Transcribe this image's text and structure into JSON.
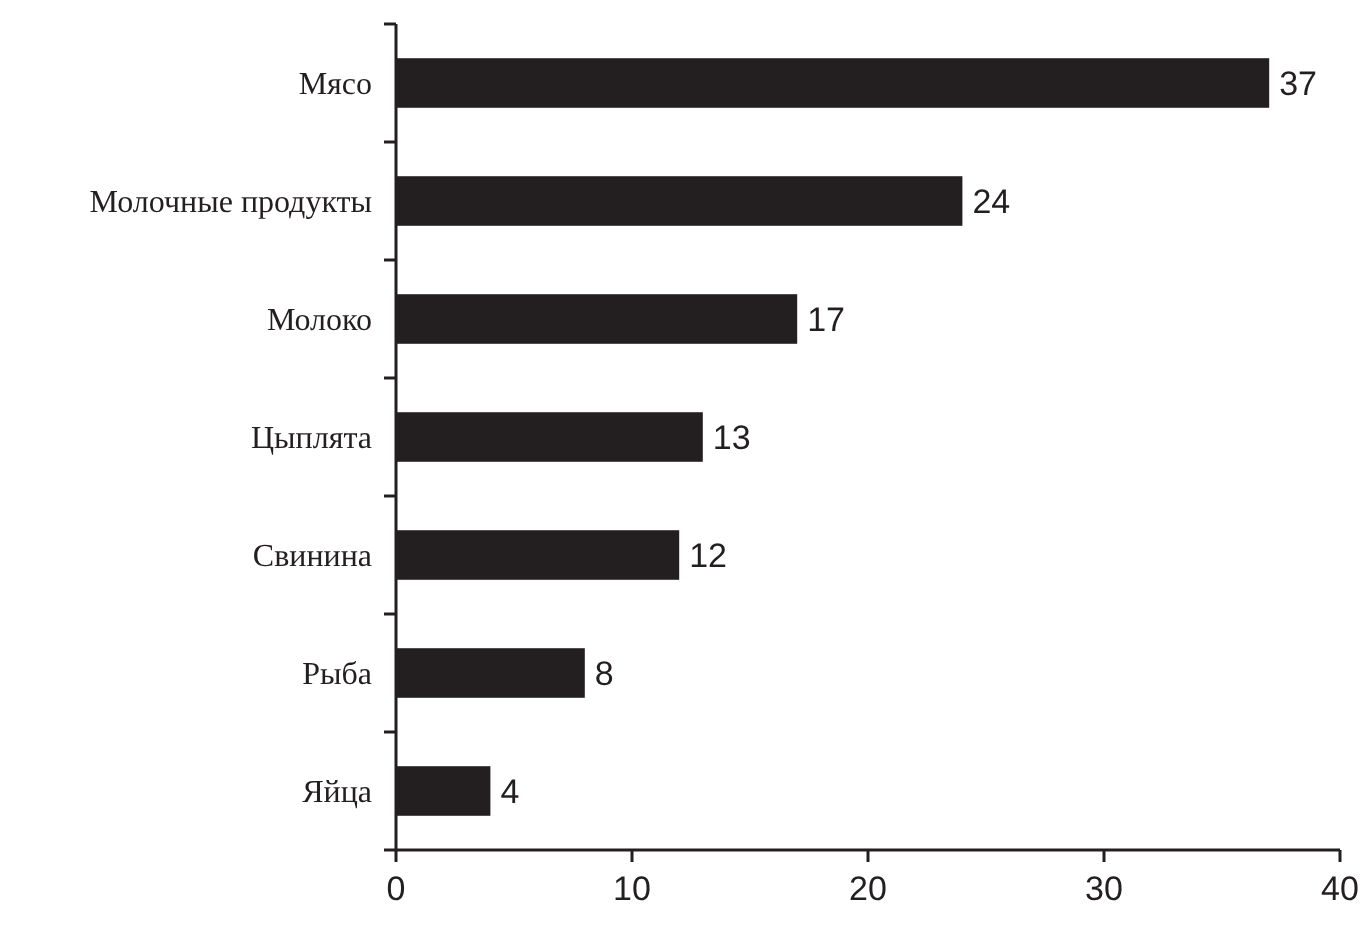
{
  "chart_data": {
    "type": "bar",
    "orientation": "horizontal",
    "categories": [
      "Мясо",
      "Молочные продукты",
      "Молоко",
      "Цыплята",
      "Свинина",
      "Рыба",
      "Яйца"
    ],
    "values": [
      37,
      24,
      17,
      13,
      12,
      8,
      4
    ],
    "color": "#231f20",
    "xlim": [
      0,
      40
    ],
    "xticks": [
      0,
      10,
      20,
      30,
      40
    ],
    "data_labels": true
  }
}
